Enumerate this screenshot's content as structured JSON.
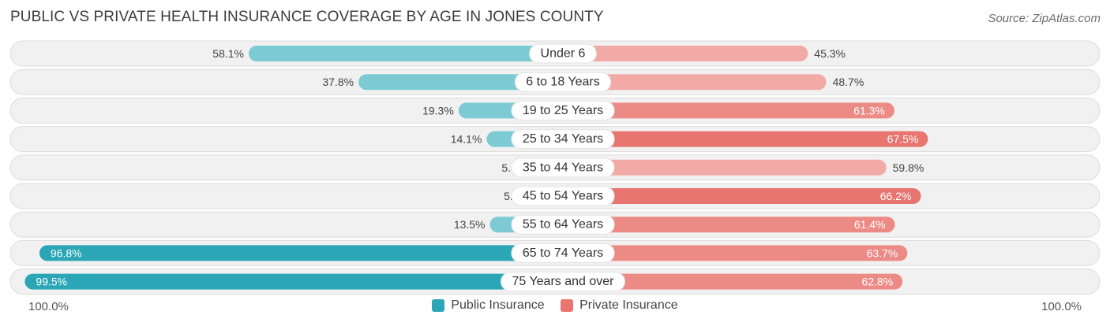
{
  "title": "PUBLIC VS PRIVATE HEALTH INSURANCE COVERAGE BY AGE IN JONES COUNTY",
  "source": "Source: ZipAtlas.com",
  "axis": {
    "left_label": "100.0%",
    "right_label": "100.0%"
  },
  "legend": {
    "public": "Public Insurance",
    "private": "Private Insurance"
  },
  "colors": {
    "public_dark": "#2ba6b6",
    "public_light": "#7ccbd4",
    "private_dark": "#e8756f",
    "private_light": "#f2aaa7",
    "row_bg": "#f1f1f1",
    "row_border": "#dcdcdc"
  },
  "chart_data": {
    "type": "bar",
    "orientation": "horizontal-diverging",
    "xlim": [
      -100,
      100
    ],
    "categories": [
      "Under 6",
      "6 to 18 Years",
      "19 to 25 Years",
      "25 to 34 Years",
      "35 to 44 Years",
      "45 to 54 Years",
      "55 to 64 Years",
      "65 to 74 Years",
      "75 Years and over"
    ],
    "series": [
      {
        "name": "Public Insurance",
        "values": [
          58.1,
          37.8,
          19.3,
          14.1,
          5.8,
          5.4,
          13.5,
          96.8,
          99.5
        ],
        "labels": [
          "58.1%",
          "37.8%",
          "19.3%",
          "14.1%",
          "5.8%",
          "5.4%",
          "13.5%",
          "96.8%",
          "99.5%"
        ]
      },
      {
        "name": "Private Insurance",
        "values": [
          45.3,
          48.7,
          61.3,
          67.5,
          59.8,
          66.2,
          61.4,
          63.7,
          62.8
        ],
        "labels": [
          "45.3%",
          "48.7%",
          "61.3%",
          "67.5%",
          "59.8%",
          "66.2%",
          "61.4%",
          "63.7%",
          "62.8%"
        ]
      }
    ],
    "legend_position": "bottom"
  }
}
